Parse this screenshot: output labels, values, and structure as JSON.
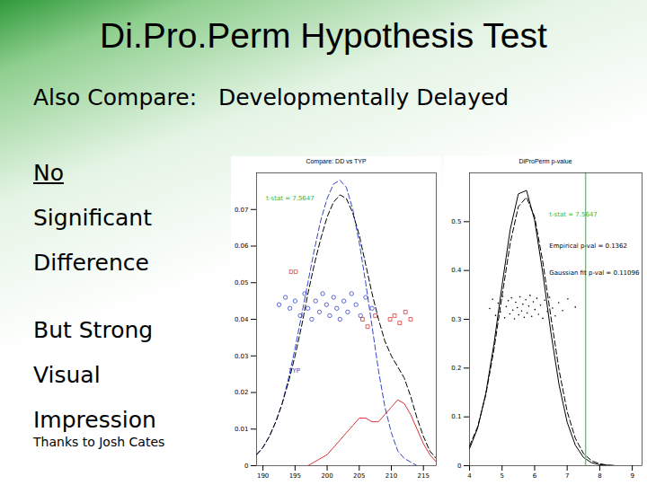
{
  "slide": {
    "title": "Di.Pro.Perm Hypothesis Test",
    "subtitle": [
      "Also Compare:",
      "Developmentally Delayed"
    ],
    "left_text": [
      "No",
      "Significant",
      "Difference",
      "But Strong",
      "Visual",
      "Impression"
    ],
    "credit": "Thanks to Josh Cates"
  },
  "chart_data": [
    {
      "type": "line",
      "title": "Compare: DD vs TYP",
      "xlim": [
        189,
        217
      ],
      "xticks": [
        190,
        195,
        200,
        205,
        210,
        215
      ],
      "ylim": [
        0,
        0.08
      ],
      "yticks": [
        0,
        0.01,
        0.02,
        0.03,
        0.04,
        0.05,
        0.06,
        0.07
      ],
      "grid": false,
      "series": [
        {
          "name": "TYP",
          "type": "line",
          "color": "#3344cc",
          "line_style": "dashed",
          "x": [
            189,
            190,
            191,
            192,
            193,
            194,
            195,
            196,
            197,
            198,
            199,
            200,
            201,
            202,
            203,
            204,
            205,
            206,
            207,
            208,
            209,
            210,
            211,
            212,
            213,
            214,
            215,
            216,
            217
          ],
          "values": [
            0.003,
            0.005,
            0.008,
            0.012,
            0.017,
            0.024,
            0.032,
            0.041,
            0.05,
            0.059,
            0.067,
            0.073,
            0.077,
            0.078,
            0.076,
            0.07,
            0.061,
            0.05,
            0.038,
            0.026,
            0.016,
            0.009,
            0.004,
            0.002,
            0.001,
            0,
            0,
            0,
            0
          ]
        },
        {
          "name": null,
          "type": "line",
          "color": "#000000",
          "line_style": "dashed",
          "x": [
            189,
            190,
            191,
            192,
            193,
            194,
            195,
            196,
            197,
            198,
            199,
            200,
            201,
            202,
            203,
            204,
            205,
            206,
            207,
            208,
            209,
            210,
            211,
            212,
            213,
            214,
            215,
            216,
            217
          ],
          "values": [
            0.003,
            0.005,
            0.008,
            0.012,
            0.017,
            0.023,
            0.03,
            0.038,
            0.047,
            0.055,
            0.062,
            0.068,
            0.072,
            0.074,
            0.073,
            0.069,
            0.063,
            0.055,
            0.047,
            0.04,
            0.034,
            0.03,
            0.027,
            0.024,
            0.019,
            0.013,
            0.008,
            0.004,
            0.002
          ]
        },
        {
          "name": "DD",
          "type": "line",
          "color": "#dd3333",
          "line_style": "solid",
          "x": [
            189,
            190,
            191,
            192,
            193,
            194,
            195,
            196,
            197,
            198,
            199,
            200,
            201,
            202,
            203,
            204,
            205,
            206,
            207,
            208,
            209,
            210,
            211,
            212,
            213,
            214,
            215,
            216,
            217
          ],
          "values": [
            0,
            0,
            0,
            0,
            0,
            0,
            0,
            0,
            0,
            0.001,
            0.002,
            0.003,
            0.005,
            0.007,
            0.009,
            0.011,
            0.013,
            0.013,
            0.012,
            0.012,
            0.014,
            0.016,
            0.018,
            0.017,
            0.014,
            0.01,
            0.006,
            0.003,
            0.001
          ]
        },
        {
          "name": "TYP",
          "type": "scatter",
          "color": "#3344cc",
          "marker": "circle",
          "x": [
            192.5,
            193.5,
            194.2,
            195,
            195.8,
            196.5,
            197,
            197.6,
            198.2,
            198.8,
            199.3,
            199.9,
            200.4,
            201,
            201.5,
            202,
            202.6,
            203.2,
            203.8,
            204.5,
            205.2,
            206,
            207
          ],
          "values": [
            0.044,
            0.046,
            0.043,
            0.045,
            0.041,
            0.047,
            0.043,
            0.04,
            0.045,
            0.042,
            0.047,
            0.044,
            0.041,
            0.046,
            0.043,
            0.04,
            0.045,
            0.042,
            0.047,
            0.044,
            0.041,
            0.046,
            0.043
          ]
        },
        {
          "name": "DD",
          "type": "scatter",
          "color": "#dd3333",
          "marker": "square",
          "x": [
            205.5,
            206.3,
            207.5,
            209.8,
            210.5,
            211.3,
            212.2,
            213
          ],
          "values": [
            0.04,
            0.038,
            0.041,
            0.04,
            0.041,
            0.039,
            0.042,
            0.04
          ]
        }
      ],
      "annotations": [
        {
          "text": "t-stat = 7.5647",
          "x": 190.5,
          "y": 0.073,
          "color": "#33bb33"
        },
        {
          "text": "DD",
          "x": 194,
          "y": 0.053,
          "color": "#dd3333"
        },
        {
          "text": "TYP",
          "x": 194,
          "y": 0.026,
          "color": "#3344cc"
        }
      ]
    },
    {
      "type": "line",
      "title": "DiProPerm p-value",
      "xlim": [
        4,
        9.3
      ],
      "xticks": [
        4,
        5,
        6,
        7,
        8,
        9
      ],
      "ylim": [
        0,
        0.6
      ],
      "yticks": [
        0,
        0.1,
        0.2,
        0.3,
        0.4,
        0.5
      ],
      "grid": false,
      "series": [
        {
          "name": null,
          "type": "line",
          "color": "#000000",
          "line_style": "solid",
          "x": [
            4,
            4.25,
            4.5,
            4.75,
            5,
            5.25,
            5.5,
            5.75,
            6,
            6.25,
            6.5,
            6.75,
            7,
            7.25,
            7.5,
            7.75,
            8,
            8.25,
            8.5,
            8.75,
            9
          ],
          "values": [
            0.035,
            0.077,
            0.148,
            0.249,
            0.37,
            0.484,
            0.557,
            0.564,
            0.503,
            0.395,
            0.273,
            0.166,
            0.089,
            0.042,
            0.017,
            0.006,
            0.002,
            0.001,
            0,
            0,
            0
          ]
        },
        {
          "name": null,
          "type": "line",
          "color": "#000000",
          "line_style": "dashed",
          "x": [
            4,
            4.25,
            4.5,
            4.75,
            5,
            5.25,
            5.5,
            5.75,
            6,
            6.25,
            6.5,
            6.75,
            7,
            7.25,
            7.5,
            7.75,
            8,
            8.25,
            8.5,
            8.75,
            9
          ],
          "values": [
            0.04,
            0.08,
            0.145,
            0.238,
            0.348,
            0.456,
            0.531,
            0.55,
            0.51,
            0.418,
            0.305,
            0.196,
            0.111,
            0.056,
            0.025,
            0.01,
            0.004,
            0.001,
            0,
            0,
            0
          ]
        },
        {
          "name": null,
          "type": "scatter",
          "color": "#000000",
          "marker": "point",
          "x": [
            4.62,
            4.71,
            4.8,
            4.88,
            4.95,
            5.02,
            5.08,
            5.13,
            5.19,
            5.24,
            5.29,
            5.33,
            5.38,
            5.42,
            5.47,
            5.51,
            5.55,
            5.6,
            5.64,
            5.68,
            5.73,
            5.77,
            5.82,
            5.86,
            5.91,
            5.96,
            6.01,
            6.07,
            6.12,
            6.18,
            6.25,
            6.31,
            6.39,
            6.46,
            6.55,
            6.63,
            6.74,
            6.86,
            7.02,
            7.25
          ],
          "values": [
            0.322,
            0.341,
            0.308,
            0.333,
            0.315,
            0.347,
            0.303,
            0.326,
            0.338,
            0.311,
            0.344,
            0.319,
            0.301,
            0.335,
            0.324,
            0.309,
            0.346,
            0.317,
            0.331,
            0.304,
            0.34,
            0.313,
            0.327,
            0.349,
            0.306,
            0.336,
            0.32,
            0.343,
            0.31,
            0.329,
            0.302,
            0.339,
            0.316,
            0.345,
            0.323,
            0.307,
            0.334,
            0.318,
            0.342,
            0.325
          ]
        }
      ],
      "vline": {
        "value": 7.5647,
        "color": "#66cc66"
      },
      "annotations": [
        {
          "text": "t-stat = 7.5647",
          "x": 6.45,
          "y": 0.515,
          "color": "#33bb33"
        },
        {
          "text": "Empirical p-val = 0.1362",
          "x": 6.45,
          "y": 0.45,
          "color": "#000000"
        },
        {
          "text": "Gaussian fit p-val = 0.11096",
          "x": 6.45,
          "y": 0.395,
          "color": "#000000"
        }
      ]
    }
  ]
}
